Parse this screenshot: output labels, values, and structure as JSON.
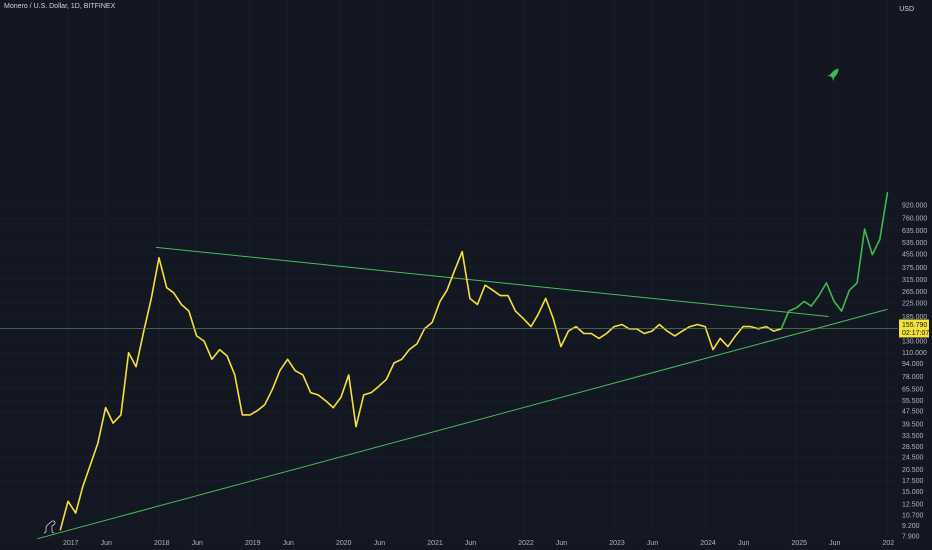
{
  "header": {
    "title": "Monero / U.S. Dollar, 1D, BITFINEX"
  },
  "axis": {
    "currency": "USD"
  },
  "price_tag": {
    "value": "155.790",
    "countdown": "02:17:07"
  },
  "chart_data": {
    "type": "line",
    "title": "Monero / U.S. Dollar, 1D, BITFINEX",
    "scale": "log",
    "y_ticks": [
      "920.000",
      "760.000",
      "635.000",
      "535.000",
      "455.000",
      "375.000",
      "315.000",
      "265.000",
      "225.000",
      "185.000",
      "130.000",
      "110.000",
      "94.000",
      "78.000",
      "65.500",
      "55.500",
      "47.500",
      "39.500",
      "33.500",
      "28.500",
      "24.500",
      "20.500",
      "17.500",
      "15.000",
      "12.500",
      "10.700",
      "9.200",
      "7.900"
    ],
    "x_ticks": [
      "2017",
      "Jun",
      "2018",
      "Jun",
      "2019",
      "Jun",
      "2020",
      "Jun",
      "2021",
      "Jun",
      "2022",
      "Jun",
      "2023",
      "Jun",
      "2024",
      "Jun",
      "2025",
      "Jun",
      "202"
    ],
    "current_price": 155.79,
    "series": [
      {
        "color": "#f5e13a",
        "points": [
          [
            "2016-12-01",
            8.6
          ],
          [
            "2017-01-01",
            13
          ],
          [
            "2017-02-01",
            11
          ],
          [
            "2017-03-01",
            16
          ],
          [
            "2017-04-01",
            22
          ],
          [
            "2017-05-01",
            30
          ],
          [
            "2017-06-01",
            50
          ],
          [
            "2017-07-01",
            40
          ],
          [
            "2017-08-01",
            45
          ],
          [
            "2017-09-01",
            110
          ],
          [
            "2017-10-01",
            90
          ],
          [
            "2017-11-01",
            150
          ],
          [
            "2017-12-01",
            240
          ],
          [
            "2018-01-01",
            430
          ],
          [
            "2018-02-01",
            280
          ],
          [
            "2018-03-01",
            260
          ],
          [
            "2018-04-01",
            220
          ],
          [
            "2018-05-01",
            200
          ],
          [
            "2018-06-01",
            140
          ],
          [
            "2018-07-01",
            130
          ],
          [
            "2018-08-01",
            100
          ],
          [
            "2018-09-01",
            115
          ],
          [
            "2018-10-01",
            105
          ],
          [
            "2018-11-01",
            80
          ],
          [
            "2018-12-01",
            45
          ],
          [
            "2019-01-01",
            45
          ],
          [
            "2019-02-01",
            48
          ],
          [
            "2019-03-01",
            52
          ],
          [
            "2019-04-01",
            65
          ],
          [
            "2019-05-01",
            85
          ],
          [
            "2019-06-01",
            100
          ],
          [
            "2019-07-01",
            85
          ],
          [
            "2019-08-01",
            80
          ],
          [
            "2019-09-01",
            62
          ],
          [
            "2019-10-01",
            60
          ],
          [
            "2019-11-01",
            55
          ],
          [
            "2019-12-01",
            50
          ],
          [
            "2020-01-01",
            58
          ],
          [
            "2020-02-01",
            80
          ],
          [
            "2020-03-01",
            38
          ],
          [
            "2020-04-01",
            60
          ],
          [
            "2020-05-01",
            62
          ],
          [
            "2020-06-01",
            68
          ],
          [
            "2020-07-01",
            75
          ],
          [
            "2020-08-01",
            95
          ],
          [
            "2020-09-01",
            100
          ],
          [
            "2020-10-01",
            115
          ],
          [
            "2020-11-01",
            125
          ],
          [
            "2020-12-01",
            155
          ],
          [
            "2021-01-01",
            170
          ],
          [
            "2021-02-01",
            230
          ],
          [
            "2021-03-01",
            270
          ],
          [
            "2021-04-01",
            360
          ],
          [
            "2021-05-01",
            470
          ],
          [
            "2021-06-01",
            240
          ],
          [
            "2021-07-01",
            220
          ],
          [
            "2021-08-01",
            290
          ],
          [
            "2021-09-01",
            270
          ],
          [
            "2021-10-01",
            250
          ],
          [
            "2021-11-01",
            250
          ],
          [
            "2021-12-01",
            200
          ],
          [
            "2022-01-01",
            180
          ],
          [
            "2022-02-01",
            160
          ],
          [
            "2022-03-01",
            190
          ],
          [
            "2022-04-01",
            240
          ],
          [
            "2022-05-01",
            180
          ],
          [
            "2022-06-01",
            120
          ],
          [
            "2022-07-01",
            150
          ],
          [
            "2022-08-01",
            160
          ],
          [
            "2022-09-01",
            145
          ],
          [
            "2022-10-01",
            145
          ],
          [
            "2022-11-01",
            135
          ],
          [
            "2022-12-01",
            145
          ],
          [
            "2023-01-01",
            160
          ],
          [
            "2023-02-01",
            165
          ],
          [
            "2023-03-01",
            155
          ],
          [
            "2023-04-01",
            155
          ],
          [
            "2023-05-01",
            145
          ],
          [
            "2023-06-01",
            150
          ],
          [
            "2023-07-01",
            165
          ],
          [
            "2023-08-01",
            150
          ],
          [
            "2023-09-01",
            140
          ],
          [
            "2023-10-01",
            150
          ],
          [
            "2023-11-01",
            160
          ],
          [
            "2023-12-01",
            165
          ],
          [
            "2024-01-01",
            160
          ],
          [
            "2024-02-01",
            115
          ],
          [
            "2024-03-01",
            135
          ],
          [
            "2024-04-01",
            120
          ],
          [
            "2024-05-01",
            140
          ],
          [
            "2024-06-01",
            160
          ],
          [
            "2024-07-01",
            160
          ],
          [
            "2024-08-01",
            155
          ],
          [
            "2024-09-01",
            160
          ],
          [
            "2024-10-01",
            150
          ],
          [
            "2024-11-01",
            155
          ]
        ]
      },
      {
        "color": "#3fb950",
        "points": [
          [
            "2024-11-01",
            155
          ],
          [
            "2024-12-01",
            200
          ],
          [
            "2025-01-01",
            210
          ],
          [
            "2025-02-01",
            230
          ],
          [
            "2025-03-01",
            215
          ],
          [
            "2025-04-01",
            250
          ],
          [
            "2025-05-01",
            300
          ],
          [
            "2025-06-01",
            230
          ],
          [
            "2025-07-01",
            200
          ],
          [
            "2025-08-01",
            270
          ],
          [
            "2025-09-01",
            300
          ],
          [
            "2025-10-01",
            650
          ],
          [
            "2025-11-01",
            450
          ],
          [
            "2025-12-01",
            560
          ],
          [
            "2026-01-01",
            1100
          ]
        ]
      }
    ],
    "trendlines": [
      {
        "from": [
          "2017-12-20",
          500
        ],
        "to": [
          "2025-05-10",
          185
        ]
      },
      {
        "from": [
          "2016-09-01",
          7.6
        ],
        "to": [
          "2025-12-31",
          205
        ]
      }
    ]
  }
}
